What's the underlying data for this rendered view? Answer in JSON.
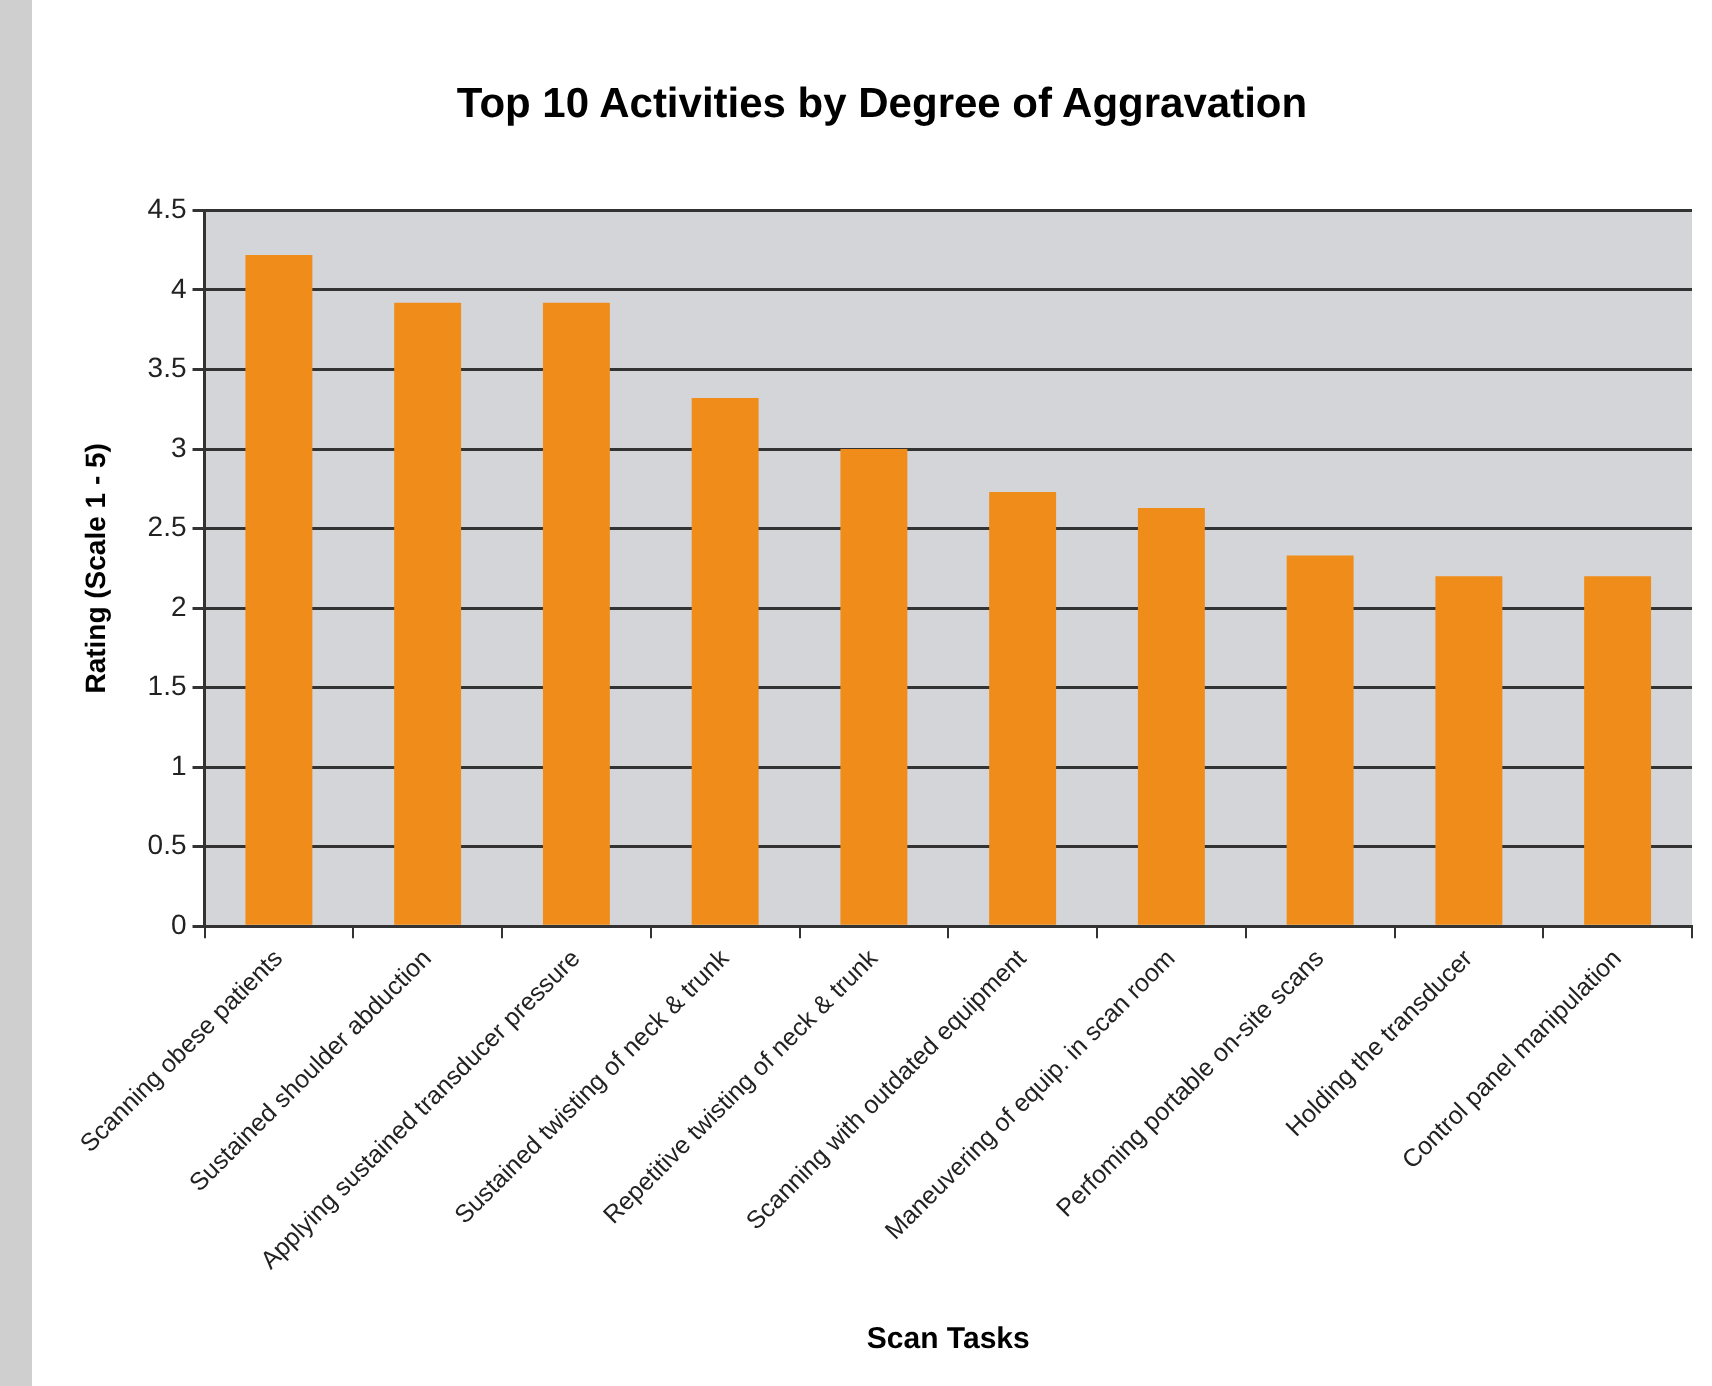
{
  "chart_data": {
    "type": "bar",
    "title": "Top 10 Activities by Degree of Aggravation",
    "xlabel": "Scan Tasks",
    "ylabel": "Rating (Scale 1 - 5)",
    "categories": [
      "Scanning obese patients",
      "Sustained shoulder abduction",
      "Applying sustained transducer pressure",
      "Sustained twisting of neck & trunk",
      "Repetitive twisting of neck & trunk",
      "Scanning with outdated equipment",
      "Maneuvering of equip. in scan room",
      "Perfoming portable on-site scans",
      "Holding the transducer",
      "Control panel manipulation"
    ],
    "values": [
      4.22,
      3.92,
      3.92,
      3.32,
      3.0,
      2.73,
      2.63,
      2.33,
      2.2,
      2.2
    ],
    "color": "#f08c1a",
    "ylim": [
      0,
      4.5
    ],
    "yticks": [
      0,
      0.5,
      1,
      1.5,
      2,
      2.5,
      3,
      3.5,
      4,
      4.5
    ],
    "grid": "y"
  }
}
